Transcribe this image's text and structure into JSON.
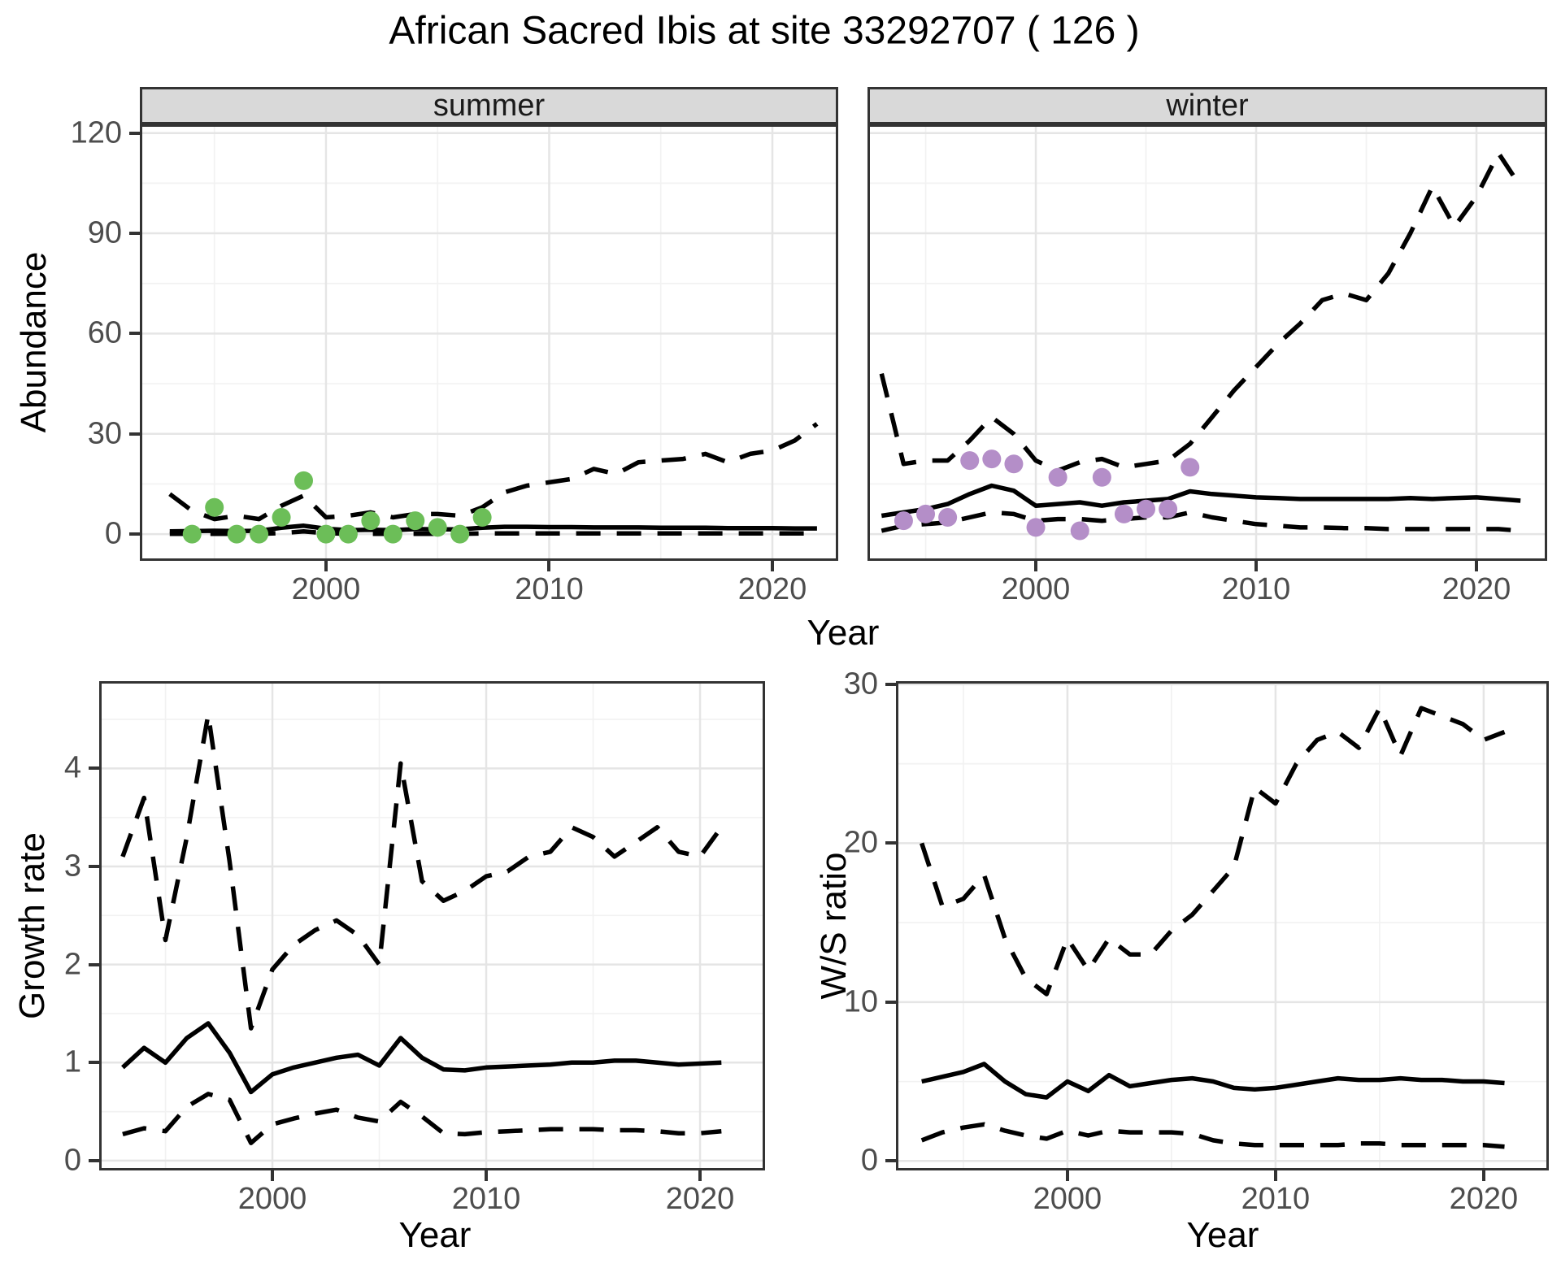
{
  "title": "African Sacred Ibis at site 33292707 ( 126 )",
  "style": {
    "line_color": "#000000",
    "grid_major": "#e5e5e5",
    "grid_minor": "#f2f2f2",
    "panel_bg": "#ffffff",
    "strip_bg": "#d9d9d9",
    "border": "#333333",
    "tick_text": "#4d4d4d",
    "summer_point_color": "#6cbe58",
    "winter_point_color": "#b48ec8"
  },
  "top_row": {
    "ylabel": "Abundance",
    "xlabel": "Year"
  },
  "bottom_left": {
    "ylabel": "Growth rate",
    "xlabel": "Year"
  },
  "bottom_right": {
    "ylabel": "W/S ratio",
    "xlabel": "Year"
  },
  "chart_data": [
    {
      "name": "abundance-summer",
      "type": "line",
      "facet": "summer",
      "xlabel": "Year",
      "ylabel": "Abundance",
      "xlim": [
        1991.66,
        2022.95
      ],
      "ylim": [
        -8,
        122.6
      ],
      "grid": true,
      "show_y_labels": true,
      "x_ticks": [
        {
          "v": 2000,
          "label": "2000"
        },
        {
          "v": 2010,
          "label": "2010"
        },
        {
          "v": 2020,
          "label": "2020"
        }
      ],
      "x_minor": [
        1995,
        2005,
        2015
      ],
      "y_ticks": [
        {
          "v": 0,
          "label": "0"
        },
        {
          "v": 30,
          "label": "30"
        },
        {
          "v": 60,
          "label": "60"
        },
        {
          "v": 90,
          "label": "90"
        },
        {
          "v": 120,
          "label": "120"
        }
      ],
      "y_minor": [
        15,
        45,
        75,
        105
      ],
      "x": [
        1993,
        1994,
        1995,
        1996,
        1997,
        1998,
        1999,
        2000,
        2001,
        2002,
        2003,
        2004,
        2005,
        2006,
        2007,
        2008,
        2009,
        2010,
        2011,
        2012,
        2013,
        2014,
        2015,
        2016,
        2017,
        2018,
        2019,
        2020,
        2021,
        2022
      ],
      "series": [
        {
          "name": "median",
          "dashed": false,
          "values": [
            0.8,
            0.9,
            1.0,
            0.9,
            1.0,
            1.9,
            2.5,
            1.6,
            1.2,
            1.3,
            1.2,
            1.5,
            1.4,
            1.4,
            1.9,
            2.2,
            2.2,
            2.1,
            2.1,
            2.0,
            2.0,
            2.0,
            1.9,
            1.9,
            1.9,
            1.8,
            1.8,
            1.8,
            1.7,
            1.7
          ]
        },
        {
          "name": "upper_ci",
          "dashed": true,
          "values": [
            12,
            7,
            4.5,
            5.5,
            4.5,
            8.5,
            11.5,
            5,
            5.5,
            6.5,
            5,
            6,
            6,
            5.5,
            8,
            12.5,
            14.5,
            15.5,
            16.5,
            19.5,
            18,
            21.5,
            22,
            22.5,
            24,
            21.5,
            24,
            25,
            28,
            33
          ]
        },
        {
          "name": "lower_ci",
          "dashed": true,
          "values": [
            0.1,
            0.1,
            0.1,
            0.1,
            0.1,
            0.3,
            0.8,
            0.3,
            0.1,
            0.1,
            0.1,
            0.1,
            0.1,
            0.1,
            0.2,
            0.2,
            0.2,
            0.2,
            0.2,
            0.2,
            0.2,
            0.2,
            0.2,
            0.2,
            0.2,
            0.2,
            0.2,
            0.2,
            0.2,
            0.2
          ]
        }
      ],
      "points": {
        "name": "summer observations",
        "color": "#6cbe58",
        "x": [
          1994,
          1995,
          1996,
          1997,
          1998,
          1999,
          2000,
          2001,
          2002,
          2003,
          2004,
          2005,
          2006,
          2007
        ],
        "y": [
          0,
          8,
          0,
          0,
          5,
          16,
          0,
          0,
          4,
          0,
          4,
          2,
          0,
          5
        ]
      }
    },
    {
      "name": "abundance-winter",
      "type": "line",
      "facet": "winter",
      "xlabel": "Year",
      "ylabel": "Abundance",
      "xlim": [
        1992.36,
        2023.21
      ],
      "ylim": [
        -8,
        122.6
      ],
      "grid": true,
      "show_y_labels": false,
      "x_ticks": [
        {
          "v": 2000,
          "label": "2000"
        },
        {
          "v": 2010,
          "label": "2010"
        },
        {
          "v": 2020,
          "label": "2020"
        }
      ],
      "x_minor": [
        1995,
        2005,
        2015
      ],
      "y_ticks": [
        {
          "v": 0,
          "label": "0"
        },
        {
          "v": 30,
          "label": "30"
        },
        {
          "v": 60,
          "label": "60"
        },
        {
          "v": 90,
          "label": "90"
        },
        {
          "v": 120,
          "label": "120"
        }
      ],
      "y_minor": [
        15,
        45,
        75,
        105
      ],
      "x": [
        1993,
        1994,
        1995,
        1996,
        1997,
        1998,
        1999,
        2000,
        2001,
        2002,
        2003,
        2004,
        2005,
        2006,
        2007,
        2008,
        2009,
        2010,
        2011,
        2012,
        2013,
        2014,
        2015,
        2016,
        2017,
        2018,
        2019,
        2020,
        2021,
        2022
      ],
      "series": [
        {
          "name": "median",
          "dashed": false,
          "values": [
            5.5,
            6.5,
            7.5,
            9,
            12,
            14.5,
            13,
            8.5,
            9,
            9.5,
            8.5,
            9.5,
            10,
            10.5,
            12.8,
            12,
            11.5,
            11,
            10.8,
            10.5,
            10.5,
            10.5,
            10.5,
            10.5,
            10.8,
            10.5,
            10.8,
            11,
            10.5,
            10
          ]
        },
        {
          "name": "upper_ci",
          "dashed": true,
          "values": [
            48,
            21,
            22,
            22,
            28,
            35,
            30,
            22,
            19,
            21.5,
            22.5,
            20,
            21,
            22,
            27,
            35,
            43,
            50,
            57,
            63,
            70,
            72,
            70,
            78,
            90,
            104,
            92,
            101,
            114,
            104
          ]
        },
        {
          "name": "lower_ci",
          "dashed": true,
          "values": [
            1,
            2.5,
            3,
            3.5,
            5,
            6.5,
            6,
            4,
            4.5,
            4.5,
            4,
            4.5,
            5,
            5,
            6.5,
            5,
            4,
            3,
            2.5,
            2,
            2,
            1.8,
            1.8,
            1.5,
            1.5,
            1.5,
            1.5,
            1.5,
            1.5,
            1
          ]
        }
      ],
      "points": {
        "name": "winter observations",
        "color": "#b48ec8",
        "x": [
          1994,
          1995,
          1996,
          1997,
          1998,
          1999,
          2000,
          2001,
          2002,
          2003,
          2004,
          2005,
          2006,
          2007
        ],
        "y": [
          4,
          6,
          5,
          22,
          22.5,
          21,
          2,
          17,
          1,
          17,
          6,
          7.5,
          7.5,
          20
        ]
      }
    },
    {
      "name": "growth-rate",
      "type": "line",
      "facet": "",
      "xlabel": "Year",
      "ylabel": "Growth rate",
      "xlim": [
        1991.9,
        2023.04
      ],
      "ylim": [
        -0.1,
        4.89
      ],
      "grid": true,
      "show_y_labels": true,
      "x_ticks": [
        {
          "v": 2000,
          "label": "2000"
        },
        {
          "v": 2010,
          "label": "2010"
        },
        {
          "v": 2020,
          "label": "2020"
        }
      ],
      "x_minor": [
        1995,
        2005,
        2015
      ],
      "y_ticks": [
        {
          "v": 0,
          "label": "0"
        },
        {
          "v": 1,
          "label": "1"
        },
        {
          "v": 2,
          "label": "2"
        },
        {
          "v": 3,
          "label": "3"
        },
        {
          "v": 4,
          "label": "4"
        }
      ],
      "y_minor": [
        0.5,
        1.5,
        2.5,
        3.5,
        4.5
      ],
      "x": [
        1993,
        1994,
        1995,
        1996,
        1997,
        1998,
        1999,
        2000,
        2001,
        2002,
        2003,
        2004,
        2005,
        2006,
        2007,
        2008,
        2009,
        2010,
        2011,
        2012,
        2013,
        2014,
        2015,
        2016,
        2017,
        2018,
        2019,
        2020,
        2021
      ],
      "series": [
        {
          "name": "median",
          "dashed": false,
          "values": [
            0.95,
            1.15,
            1.0,
            1.25,
            1.4,
            1.1,
            0.7,
            0.88,
            0.95,
            1.0,
            1.05,
            1.08,
            0.97,
            1.25,
            1.05,
            0.93,
            0.92,
            0.95,
            0.96,
            0.97,
            0.98,
            1.0,
            1.0,
            1.02,
            1.02,
            1.0,
            0.98,
            0.99,
            1.0
          ]
        },
        {
          "name": "upper_ci",
          "dashed": true,
          "values": [
            3.1,
            3.7,
            2.25,
            3.3,
            4.55,
            3.05,
            1.35,
            1.95,
            2.2,
            2.35,
            2.45,
            2.3,
            2.0,
            4.05,
            2.85,
            2.65,
            2.75,
            2.9,
            2.95,
            3.1,
            3.15,
            3.4,
            3.3,
            3.1,
            3.25,
            3.4,
            3.15,
            3.1,
            3.4
          ]
        },
        {
          "name": "lower_ci",
          "dashed": true,
          "values": [
            0.27,
            0.33,
            0.3,
            0.55,
            0.68,
            0.62,
            0.18,
            0.37,
            0.43,
            0.48,
            0.52,
            0.44,
            0.4,
            0.6,
            0.45,
            0.28,
            0.27,
            0.29,
            0.3,
            0.31,
            0.32,
            0.32,
            0.32,
            0.31,
            0.31,
            0.3,
            0.28,
            0.28,
            0.3
          ]
        }
      ]
    },
    {
      "name": "ws-ratio",
      "type": "line",
      "facet": "",
      "xlabel": "Year",
      "ylabel": "W/S ratio",
      "xlim": [
        1991.76,
        2023.13
      ],
      "ylim": [
        -0.6,
        30.2
      ],
      "grid": true,
      "show_y_labels": true,
      "x_ticks": [
        {
          "v": 2000,
          "label": "2000"
        },
        {
          "v": 2010,
          "label": "2010"
        },
        {
          "v": 2020,
          "label": "2020"
        }
      ],
      "x_minor": [
        1995,
        2005,
        2015
      ],
      "y_ticks": [
        {
          "v": 0,
          "label": "0"
        },
        {
          "v": 10,
          "label": "10"
        },
        {
          "v": 20,
          "label": "20"
        },
        {
          "v": 30,
          "label": "30"
        }
      ],
      "y_minor": [
        5,
        15,
        25
      ],
      "x": [
        1993,
        1994,
        1995,
        1996,
        1997,
        1998,
        1999,
        2000,
        2001,
        2002,
        2003,
        2004,
        2005,
        2006,
        2007,
        2008,
        2009,
        2010,
        2011,
        2012,
        2013,
        2014,
        2015,
        2016,
        2017,
        2018,
        2019,
        2020,
        2021
      ],
      "series": [
        {
          "name": "median",
          "dashed": false,
          "values": [
            5.0,
            5.3,
            5.6,
            6.1,
            5.0,
            4.2,
            4.0,
            5.0,
            4.4,
            5.4,
            4.7,
            4.9,
            5.1,
            5.2,
            5.0,
            4.6,
            4.5,
            4.6,
            4.8,
            5.0,
            5.2,
            5.1,
            5.1,
            5.2,
            5.1,
            5.1,
            5.0,
            5.0,
            4.9
          ]
        },
        {
          "name": "upper_ci",
          "dashed": true,
          "values": [
            20,
            16,
            16.5,
            18,
            14,
            11.5,
            10.5,
            14,
            12,
            14,
            13,
            13,
            14.5,
            15.5,
            17,
            18.5,
            23.5,
            22.5,
            25,
            26.5,
            27,
            26,
            28.5,
            25.5,
            28.5,
            28,
            27.5,
            26.5,
            27
          ]
        },
        {
          "name": "lower_ci",
          "dashed": true,
          "values": [
            1.3,
            1.8,
            2.1,
            2.3,
            1.9,
            1.6,
            1.4,
            1.9,
            1.6,
            1.9,
            1.8,
            1.8,
            1.8,
            1.7,
            1.3,
            1.1,
            1.0,
            1.0,
            1.0,
            1.0,
            1.0,
            1.1,
            1.1,
            1.0,
            1.0,
            1.0,
            1.0,
            1.0,
            0.9
          ]
        }
      ]
    }
  ]
}
